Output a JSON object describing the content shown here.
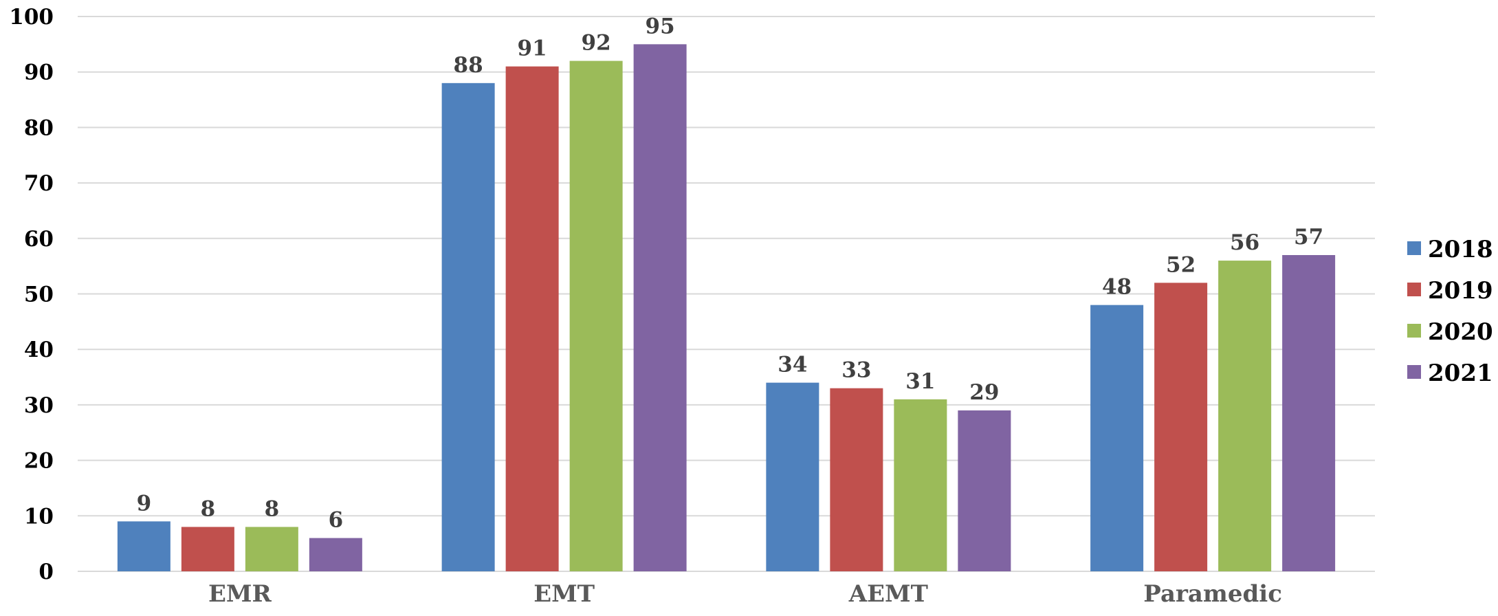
{
  "chart_data": {
    "type": "bar",
    "categories": [
      "EMR",
      "EMT",
      "AEMT",
      "Paramedic"
    ],
    "series": [
      {
        "name": "2018",
        "color": "#4f81bd",
        "values": [
          9,
          88,
          34,
          48
        ]
      },
      {
        "name": "2019",
        "color": "#c0504d",
        "values": [
          8,
          91,
          33,
          52
        ]
      },
      {
        "name": "2020",
        "color": "#9bbb59",
        "values": [
          8,
          92,
          31,
          56
        ]
      },
      {
        "name": "2021",
        "color": "#8064a2",
        "values": [
          6,
          95,
          29,
          57
        ]
      }
    ],
    "ylim": [
      0,
      100
    ],
    "yticks": [
      0,
      10,
      20,
      30,
      40,
      50,
      60,
      70,
      80,
      90,
      100
    ],
    "grid": true,
    "legend_position": "right",
    "data_labels": true
  }
}
